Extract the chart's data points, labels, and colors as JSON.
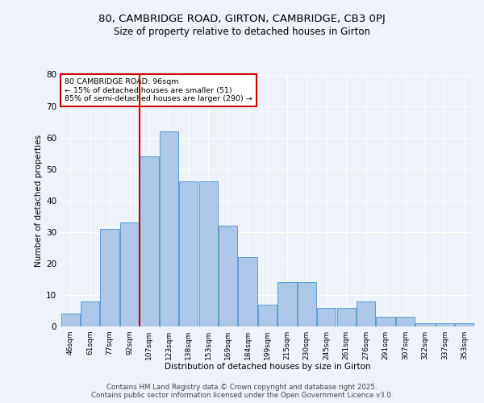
{
  "title_line1": "80, CAMBRIDGE ROAD, GIRTON, CAMBRIDGE, CB3 0PJ",
  "title_line2": "Size of property relative to detached houses in Girton",
  "xlabel": "Distribution of detached houses by size in Girton",
  "ylabel": "Number of detached properties",
  "bar_labels": [
    "46sqm",
    "61sqm",
    "77sqm",
    "92sqm",
    "107sqm",
    "123sqm",
    "138sqm",
    "153sqm",
    "169sqm",
    "184sqm",
    "199sqm",
    "215sqm",
    "230sqm",
    "245sqm",
    "261sqm",
    "276sqm",
    "291sqm",
    "307sqm",
    "322sqm",
    "337sqm",
    "353sqm"
  ],
  "bar_values": [
    4,
    8,
    31,
    33,
    54,
    62,
    46,
    46,
    32,
    22,
    7,
    14,
    14,
    6,
    6,
    8,
    3,
    3,
    1,
    1,
    1
  ],
  "bar_color": "#aec6e8",
  "bar_edge_color": "#5a9fd4",
  "vline_x": 3.5,
  "vline_color": "#cc0000",
  "annotation_title": "80 CAMBRIDGE ROAD: 96sqm",
  "annotation_line2": "← 15% of detached houses are smaller (51)",
  "annotation_line3": "85% of semi-detached houses are larger (290) →",
  "annotation_box_color": "#ffffff",
  "annotation_box_edge": "#cc0000",
  "ylim": [
    0,
    80
  ],
  "yticks": [
    0,
    10,
    20,
    30,
    40,
    50,
    60,
    70,
    80
  ],
  "background_color": "#eef2f9",
  "grid_color": "#ffffff",
  "footer_line1": "Contains HM Land Registry data © Crown copyright and database right 2025.",
  "footer_line2": "Contains public sector information licensed under the Open Government Licence v3.0."
}
